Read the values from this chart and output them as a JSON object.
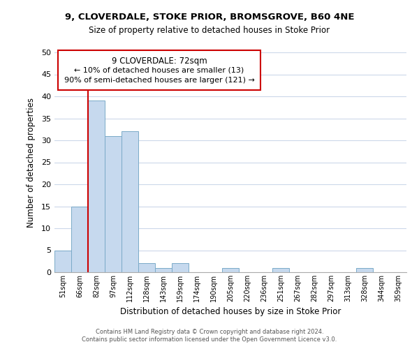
{
  "title": "9, CLOVERDALE, STOKE PRIOR, BROMSGROVE, B60 4NE",
  "subtitle": "Size of property relative to detached houses in Stoke Prior",
  "xlabel": "Distribution of detached houses by size in Stoke Prior",
  "ylabel": "Number of detached properties",
  "bin_labels": [
    "51sqm",
    "66sqm",
    "82sqm",
    "97sqm",
    "112sqm",
    "128sqm",
    "143sqm",
    "159sqm",
    "174sqm",
    "190sqm",
    "205sqm",
    "220sqm",
    "236sqm",
    "251sqm",
    "267sqm",
    "282sqm",
    "297sqm",
    "313sqm",
    "328sqm",
    "344sqm",
    "359sqm"
  ],
  "bar_heights": [
    5,
    15,
    39,
    31,
    32,
    2,
    1,
    2,
    0,
    0,
    1,
    0,
    0,
    1,
    0,
    0,
    0,
    0,
    1,
    0,
    0
  ],
  "bar_color": "#c6d9ee",
  "bar_edge_color": "#7aaac8",
  "vline_color": "#cc0000",
  "ylim": [
    0,
    50
  ],
  "yticks": [
    0,
    5,
    10,
    15,
    20,
    25,
    30,
    35,
    40,
    45,
    50
  ],
  "annotation_title": "9 CLOVERDALE: 72sqm",
  "annotation_line1": "← 10% of detached houses are smaller (13)",
  "annotation_line2": "90% of semi-detached houses are larger (121) →",
  "annotation_box_color": "#ffffff",
  "annotation_box_edge": "#cc0000",
  "footnote1": "Contains HM Land Registry data © Crown copyright and database right 2024.",
  "footnote2": "Contains public sector information licensed under the Open Government Licence v3.0.",
  "background_color": "#ffffff",
  "grid_color": "#ccd8ea"
}
